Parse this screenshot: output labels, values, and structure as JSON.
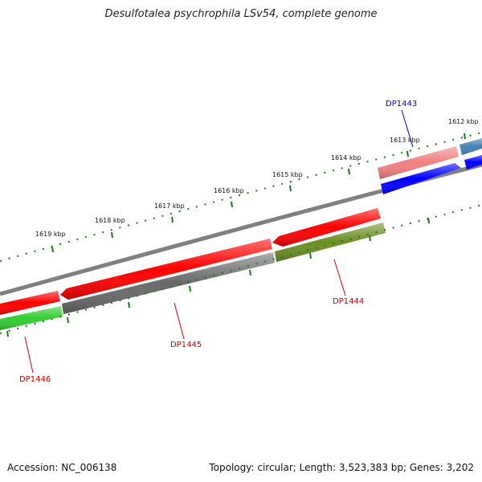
{
  "title": "Desulfotalea psychrophila LSv54, complete genome",
  "footer": {
    "accession": "Accession: NC_006138",
    "summary": "Topology: circular; Length: 3,523,383 bp; Genes: 3,202"
  },
  "ruler_labels": [
    "1612 kbp",
    "1613 kbp",
    "1614 kbp",
    "1615 kbp",
    "1616 kbp",
    "1617 kbp",
    "1618 kbp",
    "1619 kbp"
  ],
  "genes": [
    {
      "name": "DP1443",
      "color": "#0000cc"
    },
    {
      "name": "DP1444",
      "color": "#cc0000"
    },
    {
      "name": "DP1445",
      "color": "#cc0000"
    },
    {
      "name": "DP1446",
      "color": "#cc0000"
    }
  ],
  "colors": {
    "backbone": "#808080",
    "tick": "#1a7a1a",
    "forward_red": "#ff0000",
    "forward_pink": "#f08080",
    "forward_steel": "#4682b4",
    "reverse_blue": "#0000ff",
    "reverse_olive": "#6b8e23",
    "reverse_gray": "#696969",
    "reverse_green": "#32cd32"
  }
}
